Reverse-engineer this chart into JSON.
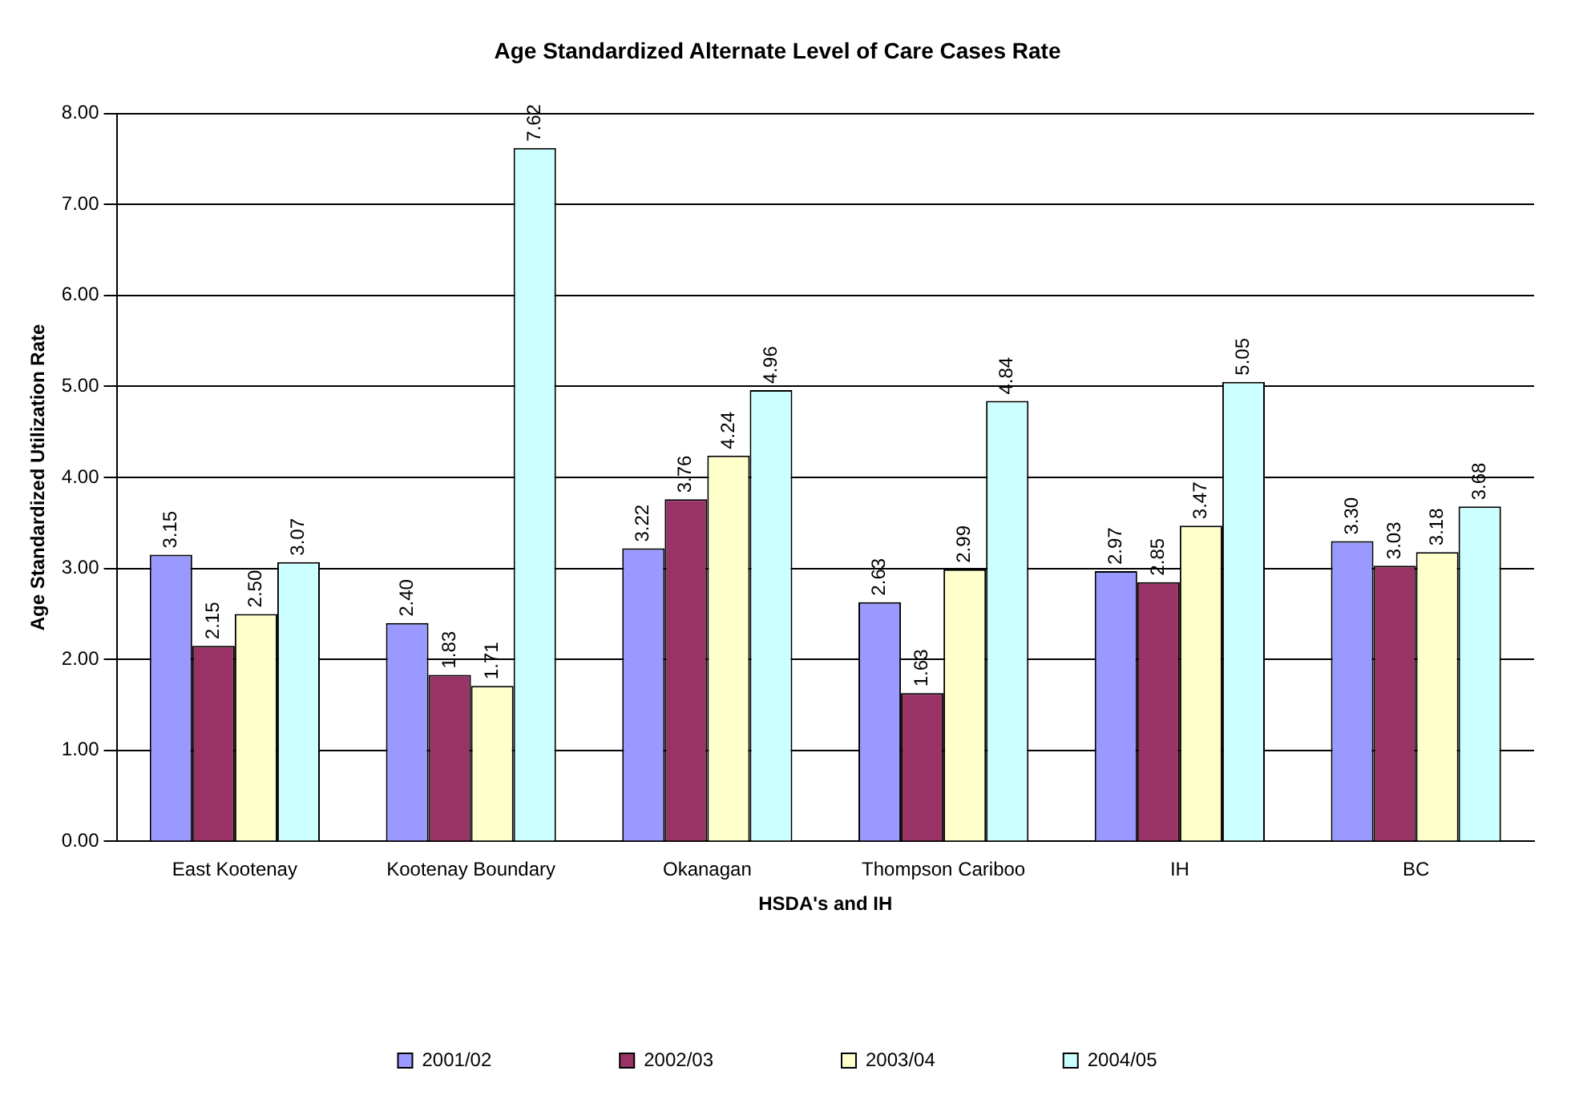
{
  "chart_data": {
    "type": "bar",
    "title": "Age Standardized Alternate Level of Care Cases Rate",
    "xlabel": "HSDA's and IH",
    "ylabel": "Age Standardized Utilization Rate",
    "categories": [
      "East Kootenay",
      "Kootenay Boundary",
      "Okanagan",
      "Thompson Cariboo",
      "IH",
      "BC"
    ],
    "series": [
      {
        "name": "2001/02",
        "color": "#9999ff",
        "values": [
          3.15,
          2.4,
          3.22,
          2.63,
          2.97,
          3.3
        ],
        "value_labels": [
          "3.15",
          "2.40",
          "3.22",
          "2.63",
          "2.97",
          "3.30"
        ]
      },
      {
        "name": "2002/03",
        "color": "#993366",
        "values": [
          2.15,
          1.83,
          3.76,
          1.63,
          2.85,
          3.03
        ],
        "value_labels": [
          "2.15",
          "1.83",
          "3.76",
          "1.63",
          "2.85",
          "3.03"
        ]
      },
      {
        "name": "2003/04",
        "color": "#ffffcc",
        "values": [
          2.5,
          1.71,
          4.24,
          2.99,
          3.47,
          3.18
        ],
        "value_labels": [
          "2.50",
          "1.71",
          "4.24",
          "2.99",
          "3.47",
          "3.18"
        ]
      },
      {
        "name": "2004/05",
        "color": "#ccffff",
        "values": [
          3.07,
          7.62,
          4.96,
          4.84,
          5.05,
          3.68
        ],
        "value_labels": [
          "3.07",
          "7.62",
          "4.96",
          "4.84",
          "5.05",
          "3.68"
        ]
      }
    ],
    "ylim": [
      0,
      8
    ],
    "yticks": [
      {
        "value": 0,
        "label": "0.00"
      },
      {
        "value": 1,
        "label": "1.00"
      },
      {
        "value": 2,
        "label": "2.00"
      },
      {
        "value": 3,
        "label": "3.00"
      },
      {
        "value": 4,
        "label": "4.00"
      },
      {
        "value": 5,
        "label": "5.00"
      },
      {
        "value": 6,
        "label": "6.00"
      },
      {
        "value": 7,
        "label": "7.00"
      },
      {
        "value": 8,
        "label": "8.00"
      }
    ],
    "grid": "y",
    "legend": "bottom"
  }
}
